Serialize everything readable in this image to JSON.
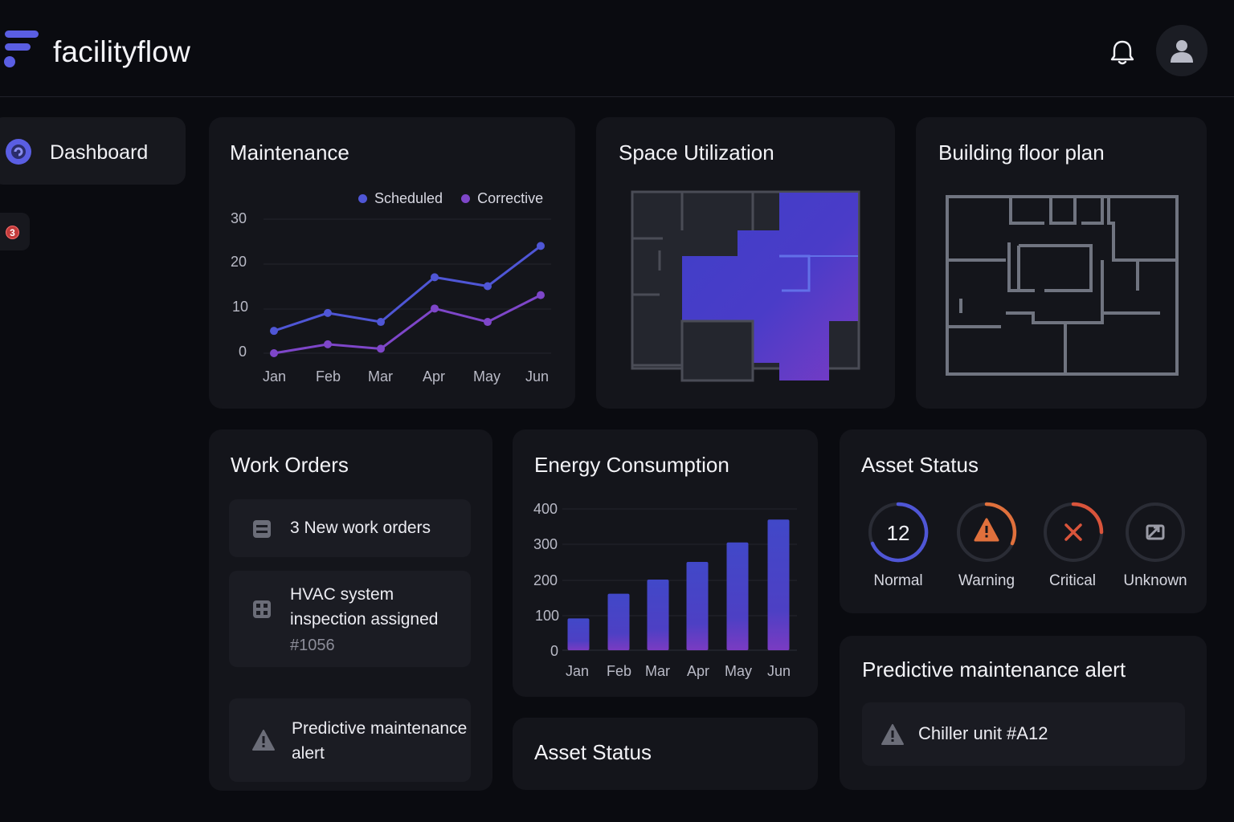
{
  "app": {
    "name": "facilityflow"
  },
  "colors": {
    "accent": "#5b5fe0",
    "scheduled": "#4f56d6",
    "corrective": "#7e46c9",
    "warning": "#e0703c",
    "critical": "#d9543b"
  },
  "sidebar": {
    "active_item": "Dashboard",
    "badge_count": "3"
  },
  "maintenance": {
    "title": "Maintenance",
    "legend": [
      "Scheduled",
      "Corrective"
    ],
    "chart_data": {
      "type": "line",
      "title": "Maintenance",
      "categories": [
        "Jan",
        "Feb",
        "Mar",
        "Apr",
        "May",
        "Jun"
      ],
      "y_ticks": [
        "30",
        "20",
        "10",
        "0"
      ],
      "ylim": [
        0,
        30
      ],
      "series": [
        {
          "name": "Scheduled",
          "values": [
            5,
            9,
            7,
            17,
            15,
            24
          ]
        },
        {
          "name": "Corrective",
          "values": [
            0,
            2,
            1,
            10,
            7,
            13
          ]
        }
      ]
    }
  },
  "space_utilization": {
    "title": "Space Utilization"
  },
  "floor_plan": {
    "title": "Building floor plan"
  },
  "work_orders": {
    "title": "Work Orders",
    "items": [
      {
        "text": "3 New work orders",
        "icon": "list-icon"
      },
      {
        "text_line1": "HVAC system",
        "text_line2": "inspection assigned",
        "sub": "#1056",
        "icon": "grid-icon"
      },
      {
        "text_line1": "Predictive maintenance",
        "text_line2": "alert",
        "icon": "warning-icon"
      }
    ]
  },
  "energy": {
    "title": "Energy Consumption",
    "chart_data": {
      "type": "bar",
      "title": "Energy Consumption",
      "categories": [
        "Jan",
        "Feb",
        "Mar",
        "Apr",
        "May",
        "Jun"
      ],
      "values": [
        90,
        160,
        200,
        250,
        305,
        370
      ],
      "y_ticks": [
        "400",
        "300",
        "200",
        "100",
        "0"
      ],
      "ylim": [
        0,
        400
      ]
    }
  },
  "asset_status": {
    "title": "Asset Status",
    "items": [
      {
        "label": "Normal",
        "value": "12"
      },
      {
        "label": "Warning"
      },
      {
        "label": "Critical"
      },
      {
        "label": "Unknown"
      }
    ]
  },
  "asset_status_bottom": {
    "title": "Asset Status"
  },
  "predictive": {
    "title": "Predictive maintenance alert",
    "alert_text": "Chiller unit #A12"
  }
}
